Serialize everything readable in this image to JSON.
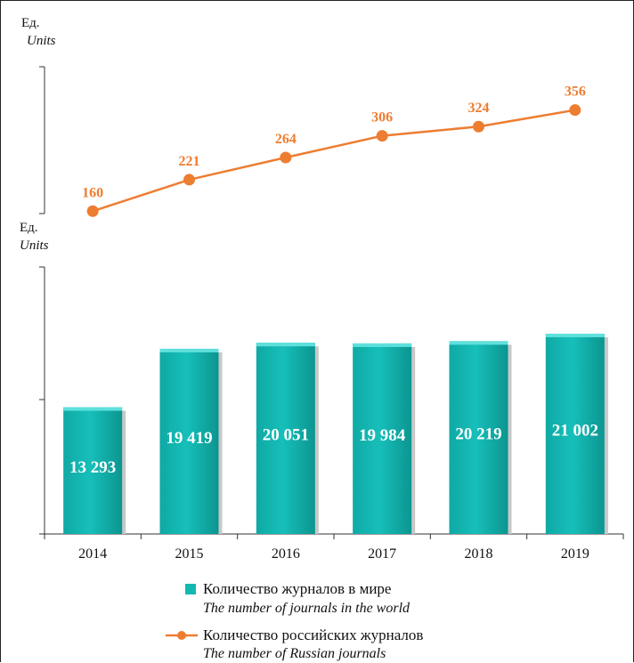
{
  "top_axis": {
    "unit_ru": "Ед.",
    "unit_en": "Units"
  },
  "bottom_axis": {
    "unit_ru": "Ед.",
    "unit_en": "Units"
  },
  "colors": {
    "bar": "#14b8b3",
    "bar_dark": "#0c8f8b",
    "line": "#ed7d31"
  },
  "chart_data": [
    {
      "type": "line",
      "x": [
        "2014",
        "2015",
        "2016",
        "2017",
        "2018",
        "2019"
      ],
      "series": [
        {
          "name": "Количество российских журналов / The number of Russian journals",
          "values": [
            160,
            221,
            264,
            306,
            324,
            356
          ],
          "labels": [
            "160",
            "221",
            "264",
            "306",
            "324",
            "356"
          ]
        }
      ],
      "ylabel": "Ед. Units"
    },
    {
      "type": "bar",
      "categories": [
        "2014",
        "2015",
        "2016",
        "2017",
        "2018",
        "2019"
      ],
      "series": [
        {
          "name": "Количество журналов в мире / The number of journals in the world",
          "values": [
            13293,
            19419,
            20051,
            19984,
            20219,
            21002
          ],
          "labels": [
            "13 293",
            "19 419",
            "20 051",
            "19 984",
            "20 219",
            "21 002"
          ]
        }
      ],
      "ylabel": "Ед. Units"
    }
  ],
  "legend": [
    {
      "ru": "Количество журналов в мире",
      "en": "The number of journals in the world"
    },
    {
      "ru": "Количество российских журналов",
      "en": "The number of Russian journals"
    }
  ]
}
